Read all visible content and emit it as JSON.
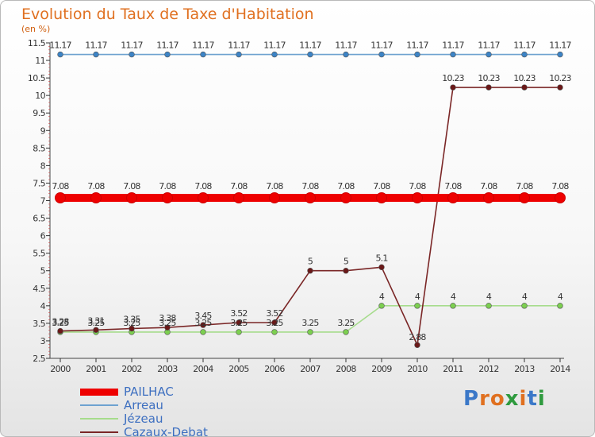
{
  "header": {
    "title": "Evolution du Taux de Taxe d'Habitation",
    "unit": "(en %)"
  },
  "logo": {
    "text": "Proxiti",
    "colors": [
      "#3b78c8",
      "#e07020",
      "#e07020",
      "#2e9a3e",
      "#e07020",
      "#3b78c8",
      "#2e9a3e"
    ]
  },
  "chart_data": {
    "type": "line",
    "x": [
      2000,
      2001,
      2002,
      2003,
      2004,
      2005,
      2006,
      2007,
      2008,
      2009,
      2010,
      2011,
      2012,
      2013,
      2014
    ],
    "ylim": [
      2.5,
      11.5
    ],
    "yticks": [
      "2.5",
      "3",
      "3.5",
      "4",
      "4.5",
      "5",
      "5.5",
      "6",
      "6.5",
      "7",
      "7.5",
      "8",
      "8.5",
      "9",
      "9.5",
      "10",
      "10.5",
      "11",
      "11.5"
    ],
    "grid": false,
    "legend_position": "bottom-left",
    "series": [
      {
        "name": "PAILHAC",
        "color": "#ee0000",
        "point_color": "#ee0000",
        "values": [
          7.08,
          7.08,
          7.08,
          7.08,
          7.08,
          7.08,
          7.08,
          7.08,
          7.08,
          7.08,
          7.08,
          7.08,
          7.08,
          7.08,
          7.08
        ],
        "labels": [
          "7.08",
          "7.08",
          "7.08",
          "7.08",
          "7.08",
          "7.08",
          "7.08",
          "7.08",
          "7.08",
          "7.08",
          "7.08",
          "7.08",
          "7.08",
          "7.08",
          "7.08"
        ]
      },
      {
        "name": "Arreau",
        "color": "#6ea2d0",
        "point_color": "#3d84c6",
        "values": [
          11.17,
          11.17,
          11.17,
          11.17,
          11.17,
          11.17,
          11.17,
          11.17,
          11.17,
          11.17,
          11.17,
          11.17,
          11.17,
          11.17,
          11.17
        ],
        "labels": [
          "11.17",
          "11.17",
          "11.17",
          "11.17",
          "11.17",
          "11.17",
          "11.17",
          "11.17",
          "11.17",
          "11.17",
          "11.17",
          "11.17",
          "11.17",
          "11.17",
          "11.17"
        ]
      },
      {
        "name": "Jézeau",
        "color": "#a6dc8c",
        "point_color": "#7ccf50",
        "values": [
          3.25,
          3.25,
          3.25,
          3.25,
          3.25,
          3.25,
          3.25,
          3.25,
          3.25,
          4,
          4,
          4,
          4,
          4,
          4
        ],
        "labels": [
          "3.25",
          "3.25",
          "3.25",
          "3.25",
          "3.25",
          "3.25",
          "3.25",
          "3.25",
          "3.25",
          "4",
          "4",
          "4",
          "4",
          "4",
          "4"
        ]
      },
      {
        "name": "Cazaux-Debat",
        "color": "#7a2626",
        "point_color": "#6a1818",
        "values": [
          3.28,
          3.31,
          3.35,
          3.38,
          3.45,
          3.52,
          3.52,
          5,
          5,
          5.1,
          2.88,
          10.23,
          10.23,
          10.23,
          10.23
        ],
        "labels": [
          "3.28",
          "3.31",
          "3.35",
          "3.38",
          "3.45",
          "3.52",
          "3.52",
          "5",
          "5",
          "5.1",
          "2.88",
          "10.23",
          "10.23",
          "10.23",
          "10.23"
        ]
      }
    ]
  }
}
